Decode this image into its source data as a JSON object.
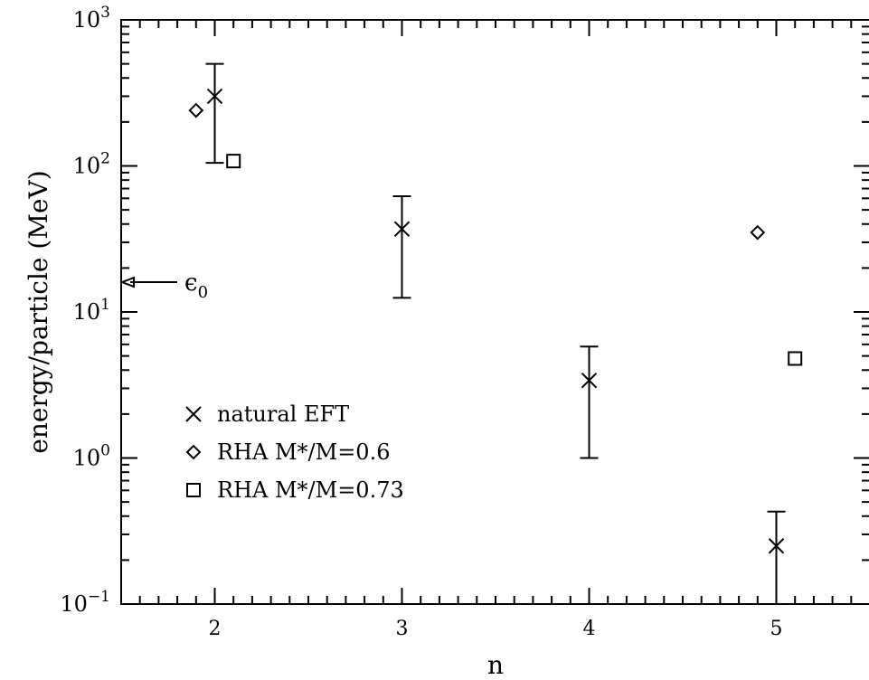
{
  "chart_data": {
    "type": "scatter",
    "xlabel": "n",
    "ylabel": "energy/particle (MeV)",
    "x_scale": "linear",
    "y_scale": "log",
    "xlim": [
      1.5,
      5.5
    ],
    "ylim": [
      0.1,
      1000
    ],
    "x_ticks": [
      2,
      3,
      4,
      5
    ],
    "x_tick_labels": [
      "2",
      "3",
      "4",
      "5"
    ],
    "y_ticks": [
      0.1,
      1,
      10,
      100,
      1000
    ],
    "y_tick_labels": [
      {
        "base": "10",
        "exp": "−1"
      },
      {
        "base": "10",
        "exp": "0"
      },
      {
        "base": "10",
        "exp": "1"
      },
      {
        "base": "10",
        "exp": "2"
      },
      {
        "base": "10",
        "exp": "3"
      }
    ],
    "grid": false,
    "legend_position": "bottom-left",
    "series": [
      {
        "name": "natural EFT",
        "marker": "cross",
        "points": [
          {
            "x": 2,
            "y": 300,
            "ylow": 105,
            "yhigh": 500
          },
          {
            "x": 3,
            "y": 37,
            "ylow": 12.5,
            "yhigh": 62
          },
          {
            "x": 4,
            "y": 3.4,
            "ylow": 1.0,
            "yhigh": 5.8
          },
          {
            "x": 5,
            "y": 0.25,
            "ylow": 0.1,
            "yhigh": 0.43
          }
        ]
      },
      {
        "name": "RHA M*/M=0.6",
        "marker": "diamond",
        "points": [
          {
            "x": 1.9,
            "y": 240
          },
          {
            "x": 4.9,
            "y": 35
          }
        ]
      },
      {
        "name": "RHA M*/M=0.73",
        "marker": "square",
        "points": [
          {
            "x": 2.1,
            "y": 108
          },
          {
            "x": 5.1,
            "y": 4.8
          }
        ]
      }
    ],
    "annotations": [
      {
        "label": "ϵ",
        "subscript": "0",
        "y": 16,
        "style": "arrow-pointing-to-y-axis"
      }
    ],
    "legend": [
      {
        "marker": "cross",
        "label": "natural EFT"
      },
      {
        "marker": "diamond",
        "label": "RHA M*/M=0.6"
      },
      {
        "marker": "square",
        "label": "RHA M*/M=0.73"
      }
    ]
  }
}
